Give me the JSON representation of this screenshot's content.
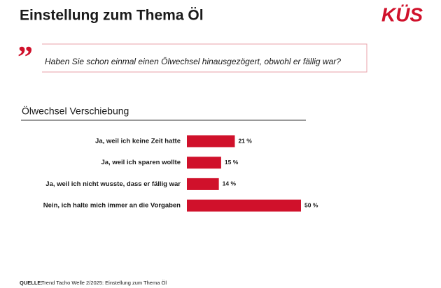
{
  "header": {
    "title": "Einstellung zum Thema Öl",
    "logo": "KÜS"
  },
  "question": "Haben Sie schon einmal einen Ölwechsel hinausgezögert, obwohl er fällig war?",
  "chart_data": {
    "type": "bar",
    "orientation": "horizontal",
    "title": "Ölwechsel Verschiebung",
    "categories": [
      "Ja, weil ich keine Zeit hatte",
      "Ja, weil ich sparen wollte",
      "Ja, weil ich nicht wusste, dass er fällig war",
      "Nein, ich halte mich immer an die Vorgaben"
    ],
    "values": [
      21,
      15,
      14,
      50
    ],
    "value_labels": [
      "21 %",
      "15 %",
      "14 %",
      "50 %"
    ],
    "color": "#d0112b"
  },
  "source": {
    "label": "QUELLE:",
    "text": "Trend Tacho Welle 2/2025: Einstellung zum Thema Öl"
  }
}
